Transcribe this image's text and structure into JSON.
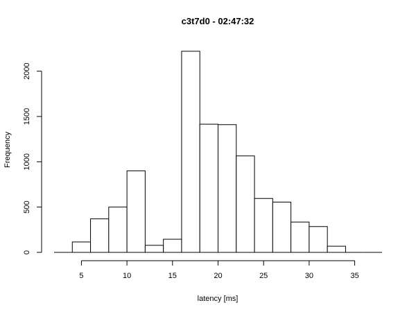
{
  "chart_data": {
    "type": "bar",
    "title": "c3t7d0 - 02:47:32",
    "xlabel": "latency [ms]",
    "ylabel": "Frequency",
    "bin_width": 2,
    "bins": [
      {
        "start": 2,
        "end": 4,
        "value": 0
      },
      {
        "start": 4,
        "end": 6,
        "value": 115
      },
      {
        "start": 6,
        "end": 8,
        "value": 370
      },
      {
        "start": 8,
        "end": 10,
        "value": 500
      },
      {
        "start": 10,
        "end": 12,
        "value": 900
      },
      {
        "start": 12,
        "end": 14,
        "value": 78
      },
      {
        "start": 14,
        "end": 16,
        "value": 145
      },
      {
        "start": 16,
        "end": 18,
        "value": 2220
      },
      {
        "start": 18,
        "end": 20,
        "value": 1415
      },
      {
        "start": 20,
        "end": 22,
        "value": 1410
      },
      {
        "start": 22,
        "end": 24,
        "value": 1065
      },
      {
        "start": 24,
        "end": 26,
        "value": 595
      },
      {
        "start": 26,
        "end": 28,
        "value": 555
      },
      {
        "start": 28,
        "end": 30,
        "value": 335
      },
      {
        "start": 30,
        "end": 32,
        "value": 285
      },
      {
        "start": 32,
        "end": 34,
        "value": 68
      },
      {
        "start": 34,
        "end": 36,
        "value": 0
      },
      {
        "start": 36,
        "end": 38,
        "value": 0
      }
    ],
    "xlim": [
      2,
      38
    ],
    "ylim": [
      0,
      2250
    ],
    "x_ticks": [
      5,
      10,
      15,
      20,
      25,
      30,
      35
    ],
    "y_ticks": [
      0,
      500,
      1000,
      1500,
      2000
    ],
    "grid": false,
    "colors": {
      "bar_fill": "#ffffff",
      "bar_stroke": "#000000"
    }
  }
}
